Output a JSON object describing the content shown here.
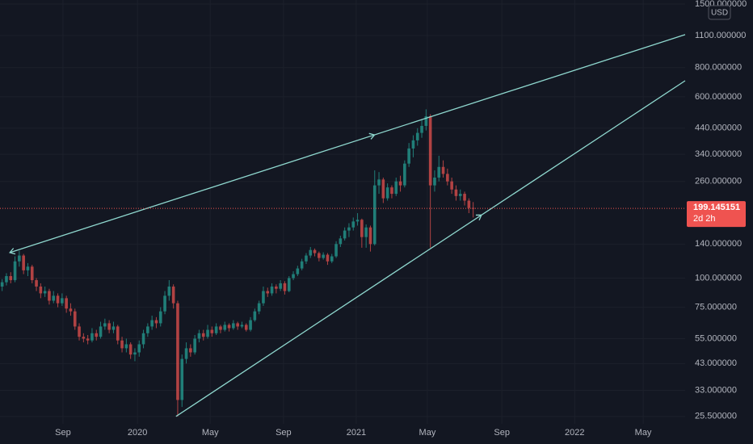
{
  "chart_data": {
    "type": "candlestick",
    "log_scale": true,
    "grid": true,
    "currency": "USD",
    "up_color": "#26a69a",
    "down_color": "#ef5350",
    "trend_color": "#8fd8cf",
    "last_price": 199.145151,
    "countdown": "2d 2h",
    "ylim": [
      23.7,
      1561
    ],
    "yticks": [
      {
        "value": 1500,
        "label": "1500.000000"
      },
      {
        "value": 1100,
        "label": "1100.000000"
      },
      {
        "value": 800,
        "label": "800.000000"
      },
      {
        "value": 600,
        "label": "600.000000"
      },
      {
        "value": 440,
        "label": "440.000000"
      },
      {
        "value": 340,
        "label": "340.000000"
      },
      {
        "value": 260,
        "label": "260.000000"
      },
      {
        "value": 140,
        "label": "140.000000"
      },
      {
        "value": 100,
        "label": "100.000000"
      },
      {
        "value": 75,
        "label": "75.000000"
      },
      {
        "value": 55,
        "label": "55.000000"
      },
      {
        "value": 43,
        "label": "43.000000"
      },
      {
        "value": 33,
        "label": "33.000000"
      },
      {
        "value": 25.5,
        "label": "25.500000"
      }
    ],
    "xlim": [
      -0.5,
      159.5
    ],
    "xticks": [
      {
        "value": 14.2,
        "label": "Sep"
      },
      {
        "value": 31.6,
        "label": "2020"
      },
      {
        "value": 48.6,
        "label": "May"
      },
      {
        "value": 65.7,
        "label": "Sep"
      },
      {
        "value": 82.7,
        "label": "2021"
      },
      {
        "value": 99.3,
        "label": "May"
      },
      {
        "value": 116.7,
        "label": "Sep"
      },
      {
        "value": 133.7,
        "label": "2022"
      },
      {
        "value": 149.7,
        "label": "May"
      }
    ],
    "trend_lines": [
      {
        "x": [
          1.8,
          159.5
        ],
        "y": [
          128.7,
          1109
        ]
      },
      {
        "x": [
          40.6,
          159.5
        ],
        "y": [
          25.5,
          703
        ]
      }
    ],
    "candles": [
      [
        92,
        99,
        88,
        96
      ],
      [
        96,
        105,
        93,
        102
      ],
      [
        102,
        106,
        95,
        98
      ],
      [
        98,
        124,
        96,
        118
      ],
      [
        118,
        131,
        112,
        125
      ],
      [
        125,
        127,
        104,
        108
      ],
      [
        108,
        116,
        102,
        112
      ],
      [
        112,
        114,
        95,
        98
      ],
      [
        98,
        100,
        88,
        92
      ],
      [
        92,
        95,
        82,
        86
      ],
      [
        86,
        92,
        83,
        88
      ],
      [
        88,
        90,
        77,
        80
      ],
      [
        80,
        88,
        78,
        84
      ],
      [
        84,
        86,
        75,
        78
      ],
      [
        78,
        86,
        76,
        82
      ],
      [
        82,
        84,
        71,
        74
      ],
      [
        74,
        78,
        69,
        72
      ],
      [
        72,
        74,
        60,
        62
      ],
      [
        62,
        64,
        54,
        56
      ],
      [
        56,
        58,
        53,
        55
      ],
      [
        55,
        57,
        52,
        54
      ],
      [
        54,
        61,
        53,
        58
      ],
      [
        58,
        60,
        54,
        56
      ],
      [
        56,
        65,
        55,
        62
      ],
      [
        62,
        67,
        60,
        64
      ],
      [
        64,
        66,
        58,
        60
      ],
      [
        60,
        65,
        58,
        62
      ],
      [
        62,
        63,
        52,
        54
      ],
      [
        54,
        56,
        48,
        50
      ],
      [
        50,
        55,
        48,
        52
      ],
      [
        52,
        53,
        45,
        47
      ],
      [
        47,
        50,
        44,
        48
      ],
      [
        48,
        54,
        46,
        52
      ],
      [
        52,
        60,
        50,
        58
      ],
      [
        58,
        64,
        56,
        62
      ],
      [
        62,
        69,
        60,
        66
      ],
      [
        66,
        68,
        61,
        64
      ],
      [
        64,
        75,
        62,
        72
      ],
      [
        72,
        88,
        70,
        84
      ],
      [
        84,
        98,
        80,
        92
      ],
      [
        92,
        94,
        74,
        78
      ],
      [
        78,
        80,
        25.5,
        30
      ],
      [
        30,
        47,
        28,
        45
      ],
      [
        45,
        53,
        43,
        50
      ],
      [
        50,
        52,
        46,
        48
      ],
      [
        48,
        57,
        47,
        55
      ],
      [
        55,
        60,
        53,
        58
      ],
      [
        58,
        60,
        54,
        56
      ],
      [
        56,
        63,
        55,
        60
      ],
      [
        60,
        62,
        56,
        58
      ],
      [
        58,
        64,
        57,
        62
      ],
      [
        62,
        63,
        58,
        60
      ],
      [
        60,
        65,
        59,
        63
      ],
      [
        63,
        64,
        59,
        61
      ],
      [
        61,
        66,
        60,
        64
      ],
      [
        64,
        65,
        60,
        62
      ],
      [
        62,
        65,
        61,
        63
      ],
      [
        63,
        64,
        59,
        60
      ],
      [
        60,
        68,
        59,
        66
      ],
      [
        66,
        74,
        65,
        72
      ],
      [
        72,
        80,
        70,
        78
      ],
      [
        78,
        92,
        76,
        88
      ],
      [
        88,
        91,
        83,
        86
      ],
      [
        86,
        95,
        84,
        92
      ],
      [
        92,
        94,
        86,
        90
      ],
      [
        90,
        98,
        88,
        95
      ],
      [
        95,
        97,
        85,
        88
      ],
      [
        88,
        102,
        87,
        100
      ],
      [
        100,
        107,
        98,
        104
      ],
      [
        104,
        113,
        102,
        110
      ],
      [
        110,
        121,
        108,
        118
      ],
      [
        118,
        128,
        115,
        125
      ],
      [
        125,
        136,
        122,
        132
      ],
      [
        132,
        134,
        124,
        128
      ],
      [
        128,
        130,
        118,
        122
      ],
      [
        122,
        129,
        120,
        126
      ],
      [
        126,
        128,
        114,
        118
      ],
      [
        118,
        127,
        116,
        124
      ],
      [
        124,
        144,
        122,
        140
      ],
      [
        140,
        152,
        136,
        148
      ],
      [
        148,
        165,
        145,
        160
      ],
      [
        160,
        172,
        150,
        165
      ],
      [
        165,
        182,
        160,
        175
      ],
      [
        175,
        190,
        168,
        178
      ],
      [
        178,
        180,
        135,
        150
      ],
      [
        150,
        170,
        135,
        165
      ],
      [
        165,
        168,
        130,
        140
      ],
      [
        140,
        290,
        138,
        250
      ],
      [
        250,
        285,
        230,
        265
      ],
      [
        265,
        270,
        210,
        220
      ],
      [
        220,
        255,
        215,
        245
      ],
      [
        245,
        250,
        220,
        230
      ],
      [
        230,
        270,
        225,
        260
      ],
      [
        260,
        275,
        235,
        250
      ],
      [
        250,
        320,
        245,
        310
      ],
      [
        310,
        380,
        300,
        360
      ],
      [
        360,
        410,
        330,
        390
      ],
      [
        390,
        440,
        370,
        420
      ],
      [
        420,
        480,
        400,
        450
      ],
      [
        450,
        530,
        430,
        495
      ],
      [
        495,
        505,
        135,
        250
      ],
      [
        250,
        290,
        235,
        270
      ],
      [
        270,
        335,
        260,
        300
      ],
      [
        300,
        320,
        270,
        280
      ],
      [
        280,
        295,
        250,
        260
      ],
      [
        260,
        270,
        230,
        240
      ],
      [
        240,
        250,
        215,
        225
      ],
      [
        225,
        240,
        215,
        230
      ],
      [
        230,
        235,
        205,
        215
      ],
      [
        215,
        220,
        190,
        200
      ],
      [
        200,
        212,
        182,
        199.145151
      ]
    ]
  }
}
